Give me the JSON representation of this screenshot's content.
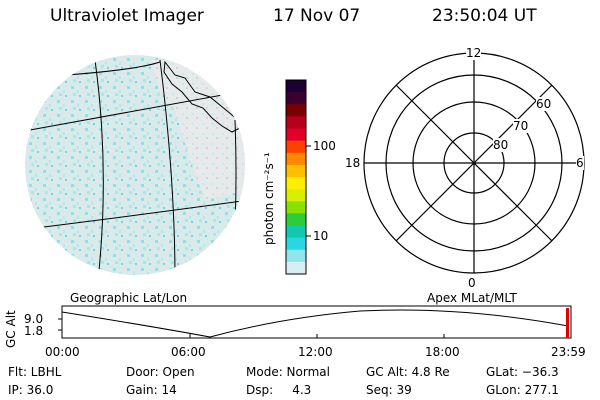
{
  "header": {
    "instrument": "Ultraviolet Imager",
    "date": "17 Nov 07",
    "time": "23:50:04 UT"
  },
  "colorbar": {
    "unit_label": "photon cm⁻²s⁻¹",
    "ticks": [
      "100",
      "10"
    ],
    "colors": [
      "#1a0033",
      "#3b0030",
      "#7a0000",
      "#b8001b",
      "#e0002a",
      "#ff4000",
      "#ff8800",
      "#ffc000",
      "#ffee00",
      "#d8f000",
      "#8ae000",
      "#2ccc3a",
      "#13c8b0",
      "#28d8e0",
      "#90e4ec",
      "#d8eef2"
    ]
  },
  "polar_plot": {
    "mlt_labels": {
      "top": "12",
      "left": "18",
      "right": "6",
      "bottom": "0"
    },
    "lat_labels": [
      "80",
      "70",
      "60"
    ]
  },
  "map_panel": {
    "label": "Geographic Lat/Lon"
  },
  "timeline": {
    "left_label": "Geographic Lat/Lon",
    "right_label": "Apex MLat/MLT",
    "y_axis_label": "GC Alt",
    "y_ticks": [
      "9.0",
      "1.8"
    ],
    "x_ticks": [
      "00:00",
      "06:00",
      "12:00",
      "18:00",
      "23:59"
    ]
  },
  "status": {
    "flt": "Flt: LBHL",
    "door": "Door: Open",
    "mode": "Mode: Normal",
    "gc_alt": "GC Alt: 4.8 Re",
    "glat": "GLat: −36.3",
    "ip": "IP: 36.0",
    "gain": "Gain: 14",
    "dsp": "Dsp:     4.3",
    "seq": "Seq: 39",
    "glon": "GLon: 277.1"
  }
}
